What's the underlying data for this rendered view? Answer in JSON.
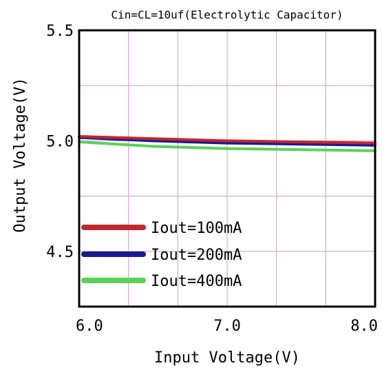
{
  "chart_data": {
    "type": "line",
    "title": "Cin=CL=10uf(Electrolytic Capacitor)",
    "xlabel": "Input Voltage(V)",
    "ylabel": "Output Voltage(V)",
    "xlim": [
      6.0,
      8.0
    ],
    "ylim": [
      4.25,
      5.5
    ],
    "x_ticks": [
      "6.0",
      "7.0",
      "8.0"
    ],
    "y_ticks": [
      {
        "value": 5.5,
        "label": "5.5"
      },
      {
        "value": 5.0,
        "label": "5.0"
      },
      {
        "value": 4.5,
        "label": "4.5"
      }
    ],
    "grid": true,
    "legend_position": "bottom-left",
    "x": [
      6.0,
      6.5,
      7.0,
      7.5,
      8.0
    ],
    "series": [
      {
        "name": "Iout=100mA",
        "color": "#c0282d",
        "values": [
          5.02,
          5.01,
          5.0,
          4.995,
          4.99
        ]
      },
      {
        "name": "Iout=200mA",
        "color": "#1a1a8c",
        "values": [
          5.015,
          5.0,
          4.99,
          4.985,
          4.98
        ]
      },
      {
        "name": "Iout=400mA",
        "color": "#5ad15a",
        "values": [
          4.995,
          4.975,
          4.965,
          4.96,
          4.955
        ]
      }
    ]
  }
}
